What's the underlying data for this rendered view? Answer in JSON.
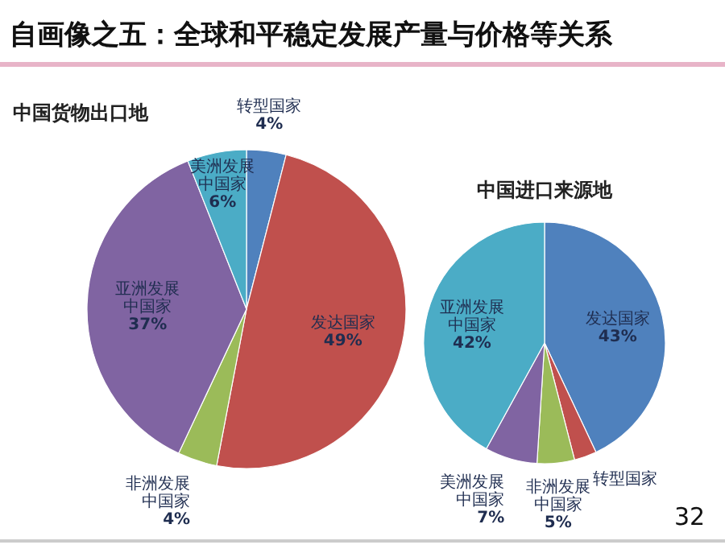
{
  "chart_data": [
    {
      "type": "pie",
      "title": "中国货物出口地",
      "categories": [
        "转型国家",
        "发达国家",
        "非洲发展中国家",
        "亚洲发展中国家",
        "美洲发展中国家"
      ],
      "values": [
        4,
        49,
        4,
        37,
        6
      ],
      "colors": [
        "#4f81bd",
        "#c0504d",
        "#9bbb59",
        "#8064a2",
        "#4bacc6"
      ],
      "value_labels": [
        "4%",
        "49%",
        "4%",
        "37%",
        "6%"
      ],
      "annotations": [
        "自画像之五：全球和平稳定发展产量与价格等关系"
      ]
    },
    {
      "type": "pie",
      "title": "中国进口来源地",
      "categories": [
        "发达国家",
        "转型国家",
        "非洲发展中国家",
        "美洲发展中国家",
        "亚洲发展中国家"
      ],
      "values": [
        43,
        3,
        5,
        7,
        42
      ],
      "colors": [
        "#4f81bd",
        "#c0504d",
        "#9bbb59",
        "#8064a2",
        "#4bacc6"
      ],
      "value_labels": [
        "43%",
        null,
        "5%",
        "7%",
        "42%"
      ],
      "annotations": [
        "32"
      ]
    }
  ]
}
